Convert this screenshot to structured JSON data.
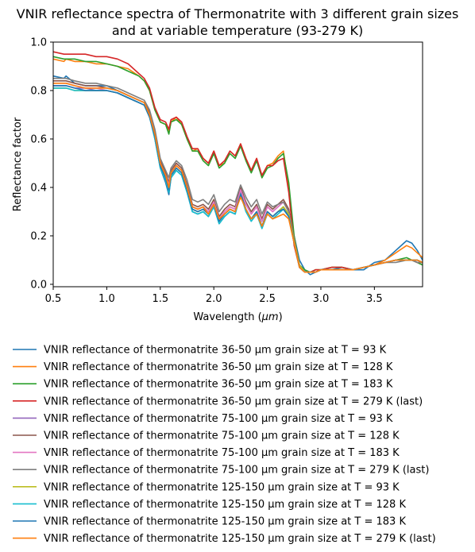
{
  "chart_data": {
    "type": "line",
    "title": [
      "VNIR reflectance spectra of Thermonatrite with 3 different grain sizes",
      "and at variable temperature (93-279 K)"
    ],
    "xlabel": "Wavelength (μm)",
    "ylabel": "Reflectance factor",
    "xlim": [
      0.5,
      3.95
    ],
    "ylim": [
      -0.01,
      1.0
    ],
    "xticks": [
      0.5,
      1.0,
      1.5,
      2.0,
      2.5,
      3.0,
      3.5
    ],
    "xtick_labels": [
      "0.5",
      "1.0",
      "1.5",
      "2.0",
      "2.5",
      "3.0",
      "3.5"
    ],
    "yticks": [
      0.0,
      0.2,
      0.4,
      0.6,
      0.8,
      1.0
    ],
    "ytick_labels": [
      "0.0",
      "0.2",
      "0.4",
      "0.6",
      "0.8",
      "1.0"
    ],
    "grid": false,
    "legend_position": "below plot",
    "x": [
      0.5,
      0.6,
      0.62,
      0.7,
      0.8,
      0.9,
      1.0,
      1.1,
      1.2,
      1.3,
      1.35,
      1.4,
      1.45,
      1.5,
      1.55,
      1.58,
      1.6,
      1.65,
      1.7,
      1.75,
      1.8,
      1.85,
      1.9,
      1.95,
      2.0,
      2.05,
      2.1,
      2.15,
      2.2,
      2.25,
      2.3,
      2.35,
      2.4,
      2.45,
      2.5,
      2.55,
      2.6,
      2.65,
      2.7,
      2.75,
      2.8,
      2.85,
      2.9,
      2.95,
      3.0,
      3.1,
      3.2,
      3.3,
      3.4,
      3.5,
      3.6,
      3.7,
      3.8,
      3.85,
      3.9,
      3.95
    ],
    "series": [
      {
        "name": "VNIR reflectance of thermonatrite 36-50 µm grain size at T = 93 K",
        "color": "#1f77b4",
        "values": [
          0.86,
          0.85,
          0.86,
          0.83,
          0.82,
          0.82,
          0.82,
          0.8,
          0.78,
          0.76,
          0.75,
          0.7,
          0.6,
          0.48,
          0.42,
          0.37,
          0.44,
          0.47,
          0.45,
          0.38,
          0.3,
          0.29,
          0.3,
          0.28,
          0.32,
          0.25,
          0.28,
          0.3,
          0.29,
          0.38,
          0.31,
          0.27,
          0.3,
          0.24,
          0.3,
          0.28,
          0.3,
          0.32,
          0.28,
          0.2,
          0.1,
          0.06,
          0.04,
          0.05,
          0.06,
          0.06,
          0.07,
          0.06,
          0.06,
          0.09,
          0.1,
          0.14,
          0.18,
          0.17,
          0.14,
          0.1
        ]
      },
      {
        "name": "VNIR reflectance of thermonatrite 36-50 µm grain size at T = 128 K",
        "color": "#ff7f0e",
        "values": [
          0.93,
          0.92,
          0.93,
          0.92,
          0.92,
          0.91,
          0.91,
          0.9,
          0.89,
          0.86,
          0.84,
          0.8,
          0.72,
          0.67,
          0.66,
          0.63,
          0.67,
          0.69,
          0.66,
          0.6,
          0.55,
          0.56,
          0.52,
          0.5,
          0.55,
          0.49,
          0.5,
          0.55,
          0.53,
          0.58,
          0.52,
          0.47,
          0.52,
          0.44,
          0.49,
          0.5,
          0.53,
          0.55,
          0.4,
          0.18,
          0.07,
          0.05,
          0.05,
          0.06,
          0.06,
          0.07,
          0.07,
          0.06,
          0.07,
          0.08,
          0.1,
          0.13,
          0.16,
          0.15,
          0.13,
          0.11
        ]
      },
      {
        "name": "VNIR reflectance of thermonatrite 36-50 µm grain size at T = 183 K",
        "color": "#2ca02c",
        "values": [
          0.94,
          0.93,
          0.93,
          0.93,
          0.92,
          0.92,
          0.91,
          0.9,
          0.88,
          0.86,
          0.84,
          0.8,
          0.72,
          0.67,
          0.66,
          0.62,
          0.67,
          0.68,
          0.66,
          0.6,
          0.55,
          0.55,
          0.51,
          0.49,
          0.54,
          0.48,
          0.5,
          0.54,
          0.52,
          0.57,
          0.51,
          0.46,
          0.51,
          0.44,
          0.48,
          0.49,
          0.52,
          0.54,
          0.42,
          0.2,
          0.08,
          0.06,
          0.05,
          0.06,
          0.06,
          0.07,
          0.07,
          0.06,
          0.07,
          0.08,
          0.09,
          0.1,
          0.11,
          0.1,
          0.09,
          0.08
        ]
      },
      {
        "name": "VNIR reflectance of thermonatrite 36-50 µm grain size at T = 279 K (last)",
        "color": "#d62728",
        "values": [
          0.96,
          0.95,
          0.95,
          0.95,
          0.95,
          0.94,
          0.94,
          0.93,
          0.91,
          0.87,
          0.85,
          0.81,
          0.73,
          0.68,
          0.67,
          0.64,
          0.68,
          0.69,
          0.67,
          0.61,
          0.56,
          0.56,
          0.52,
          0.5,
          0.55,
          0.49,
          0.51,
          0.55,
          0.53,
          0.58,
          0.52,
          0.47,
          0.52,
          0.45,
          0.49,
          0.49,
          0.51,
          0.52,
          0.38,
          0.16,
          0.07,
          0.05,
          0.05,
          0.06,
          0.06,
          0.07,
          0.07,
          0.06,
          0.07,
          0.08,
          0.09,
          0.1,
          0.1,
          0.1,
          0.09,
          0.09
        ]
      },
      {
        "name": "VNIR reflectance of thermonatrite 75-100 µm grain size at T = 93 K",
        "color": "#9467bd",
        "values": [
          0.82,
          0.82,
          0.82,
          0.81,
          0.81,
          0.8,
          0.8,
          0.79,
          0.77,
          0.75,
          0.74,
          0.7,
          0.62,
          0.5,
          0.45,
          0.41,
          0.46,
          0.49,
          0.47,
          0.4,
          0.32,
          0.31,
          0.32,
          0.3,
          0.34,
          0.27,
          0.3,
          0.32,
          0.31,
          0.39,
          0.33,
          0.29,
          0.32,
          0.26,
          0.32,
          0.3,
          0.32,
          0.34,
          0.3,
          0.18,
          0.08,
          0.05,
          0.05,
          0.05,
          0.06,
          0.06,
          0.06,
          0.06,
          0.07,
          0.08,
          0.09,
          0.1,
          0.1,
          0.1,
          0.1,
          0.09
        ]
      },
      {
        "name": "VNIR reflectance of thermonatrite 75-100 µm grain size at T = 128 K",
        "color": "#8c564b",
        "values": [
          0.84,
          0.84,
          0.84,
          0.83,
          0.82,
          0.82,
          0.81,
          0.8,
          0.78,
          0.76,
          0.75,
          0.71,
          0.63,
          0.51,
          0.46,
          0.42,
          0.47,
          0.5,
          0.48,
          0.41,
          0.33,
          0.32,
          0.33,
          0.31,
          0.35,
          0.28,
          0.31,
          0.33,
          0.32,
          0.4,
          0.34,
          0.3,
          0.33,
          0.27,
          0.33,
          0.31,
          0.33,
          0.35,
          0.31,
          0.19,
          0.08,
          0.05,
          0.05,
          0.05,
          0.06,
          0.06,
          0.06,
          0.06,
          0.07,
          0.08,
          0.09,
          0.1,
          0.1,
          0.1,
          0.1,
          0.09
        ]
      },
      {
        "name": "VNIR reflectance of thermonatrite 75-100 µm grain size at T = 183 K",
        "color": "#e377c2",
        "values": [
          0.83,
          0.83,
          0.83,
          0.82,
          0.81,
          0.81,
          0.8,
          0.79,
          0.77,
          0.75,
          0.74,
          0.7,
          0.62,
          0.5,
          0.45,
          0.41,
          0.46,
          0.49,
          0.47,
          0.4,
          0.32,
          0.31,
          0.32,
          0.3,
          0.34,
          0.27,
          0.3,
          0.32,
          0.31,
          0.39,
          0.33,
          0.29,
          0.32,
          0.26,
          0.32,
          0.3,
          0.32,
          0.34,
          0.3,
          0.18,
          0.08,
          0.05,
          0.05,
          0.05,
          0.06,
          0.06,
          0.06,
          0.06,
          0.07,
          0.08,
          0.09,
          0.1,
          0.1,
          0.1,
          0.1,
          0.09
        ]
      },
      {
        "name": "VNIR reflectance of thermonatrite 75-100 µm grain size at T = 279 K (last)",
        "color": "#7f7f7f",
        "values": [
          0.85,
          0.85,
          0.85,
          0.84,
          0.83,
          0.83,
          0.82,
          0.81,
          0.79,
          0.77,
          0.76,
          0.72,
          0.64,
          0.52,
          0.47,
          0.44,
          0.48,
          0.51,
          0.49,
          0.43,
          0.35,
          0.34,
          0.35,
          0.33,
          0.37,
          0.3,
          0.33,
          0.35,
          0.34,
          0.41,
          0.36,
          0.32,
          0.35,
          0.29,
          0.34,
          0.32,
          0.33,
          0.34,
          0.3,
          0.18,
          0.08,
          0.05,
          0.05,
          0.05,
          0.06,
          0.06,
          0.06,
          0.06,
          0.07,
          0.08,
          0.09,
          0.09,
          0.1,
          0.1,
          0.09,
          0.09
        ]
      },
      {
        "name": "VNIR reflectance of thermonatrite 125-150 µm grain size at T = 93 K",
        "color": "#bcbd22",
        "values": [
          0.81,
          0.81,
          0.81,
          0.8,
          0.8,
          0.8,
          0.8,
          0.79,
          0.77,
          0.75,
          0.74,
          0.69,
          0.61,
          0.49,
          0.44,
          0.4,
          0.45,
          0.48,
          0.46,
          0.39,
          0.31,
          0.3,
          0.31,
          0.29,
          0.33,
          0.26,
          0.29,
          0.31,
          0.3,
          0.37,
          0.31,
          0.27,
          0.3,
          0.24,
          0.3,
          0.28,
          0.3,
          0.32,
          0.29,
          0.18,
          0.08,
          0.05,
          0.05,
          0.05,
          0.06,
          0.06,
          0.06,
          0.06,
          0.07,
          0.08,
          0.09,
          0.1,
          0.1,
          0.1,
          0.1,
          0.09
        ]
      },
      {
        "name": "VNIR reflectance of thermonatrite 125-150 µm grain size at T = 128 K",
        "color": "#17becf",
        "values": [
          0.81,
          0.81,
          0.81,
          0.8,
          0.8,
          0.8,
          0.8,
          0.79,
          0.77,
          0.75,
          0.74,
          0.69,
          0.6,
          0.48,
          0.43,
          0.38,
          0.44,
          0.47,
          0.45,
          0.38,
          0.3,
          0.29,
          0.3,
          0.28,
          0.32,
          0.25,
          0.28,
          0.3,
          0.29,
          0.37,
          0.3,
          0.26,
          0.29,
          0.23,
          0.29,
          0.27,
          0.29,
          0.31,
          0.28,
          0.17,
          0.07,
          0.05,
          0.05,
          0.05,
          0.06,
          0.06,
          0.06,
          0.06,
          0.07,
          0.08,
          0.09,
          0.1,
          0.1,
          0.1,
          0.1,
          0.09
        ]
      },
      {
        "name": "VNIR reflectance of thermonatrite 125-150 µm grain size at T = 183 K",
        "color": "#1f77b4",
        "values": [
          0.82,
          0.82,
          0.82,
          0.81,
          0.8,
          0.8,
          0.8,
          0.79,
          0.77,
          0.75,
          0.74,
          0.69,
          0.61,
          0.49,
          0.44,
          0.39,
          0.45,
          0.48,
          0.46,
          0.39,
          0.31,
          0.3,
          0.31,
          0.29,
          0.33,
          0.26,
          0.29,
          0.31,
          0.3,
          0.37,
          0.31,
          0.27,
          0.3,
          0.24,
          0.3,
          0.28,
          0.3,
          0.31,
          0.28,
          0.17,
          0.07,
          0.05,
          0.05,
          0.05,
          0.06,
          0.06,
          0.06,
          0.06,
          0.07,
          0.08,
          0.09,
          0.1,
          0.1,
          0.1,
          0.1,
          0.09
        ]
      },
      {
        "name": "VNIR reflectance of thermonatrite 125-150 µm grain size at T = 279 K (last)",
        "color": "#ff7f0e",
        "values": [
          0.83,
          0.83,
          0.83,
          0.82,
          0.81,
          0.81,
          0.81,
          0.8,
          0.78,
          0.76,
          0.75,
          0.7,
          0.62,
          0.5,
          0.45,
          0.4,
          0.46,
          0.49,
          0.47,
          0.4,
          0.32,
          0.31,
          0.32,
          0.29,
          0.33,
          0.27,
          0.29,
          0.31,
          0.3,
          0.36,
          0.31,
          0.27,
          0.29,
          0.24,
          0.29,
          0.27,
          0.28,
          0.29,
          0.27,
          0.17,
          0.07,
          0.05,
          0.05,
          0.05,
          0.06,
          0.06,
          0.06,
          0.06,
          0.07,
          0.08,
          0.09,
          0.1,
          0.1,
          0.1,
          0.1,
          0.09
        ]
      }
    ]
  }
}
